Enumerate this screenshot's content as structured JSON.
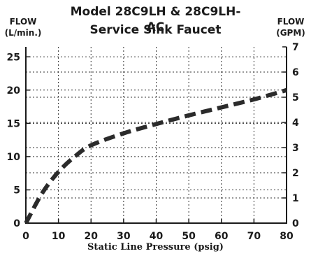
{
  "chart_data": {
    "type": "line",
    "title": [
      "Model 28C9LH & 28C9LH-AC",
      "Service Sink Faucet"
    ],
    "left_axis_title": [
      "FLOW",
      "(L/min.)"
    ],
    "right_axis_title": [
      "FLOW",
      "(GPM)"
    ],
    "xlabel": "Static Line Pressure (psig)",
    "xlim": [
      0,
      80
    ],
    "ylim_left": [
      0,
      26.5
    ],
    "ylim_right": [
      0,
      7
    ],
    "x_ticks": [
      0,
      10,
      20,
      30,
      40,
      50,
      60,
      70,
      80
    ],
    "y_left_ticks": [
      0,
      5,
      10,
      15,
      20,
      25
    ],
    "y_right_ticks": [
      0,
      1,
      2,
      3,
      4,
      5,
      6,
      7
    ],
    "grid": true,
    "line_style": "dashed",
    "series": [
      {
        "x": [
          0,
          5,
          10,
          15,
          20,
          30,
          40,
          50,
          60,
          70,
          80
        ],
        "y": [
          0,
          4.5,
          7.7,
          10.0,
          11.7,
          13.5,
          14.9,
          16.2,
          17.4,
          18.6,
          20.0
        ]
      }
    ]
  },
  "colors": {
    "line": "#2b2b2b",
    "grid": "#333333",
    "axis": "#1a1a1a"
  }
}
